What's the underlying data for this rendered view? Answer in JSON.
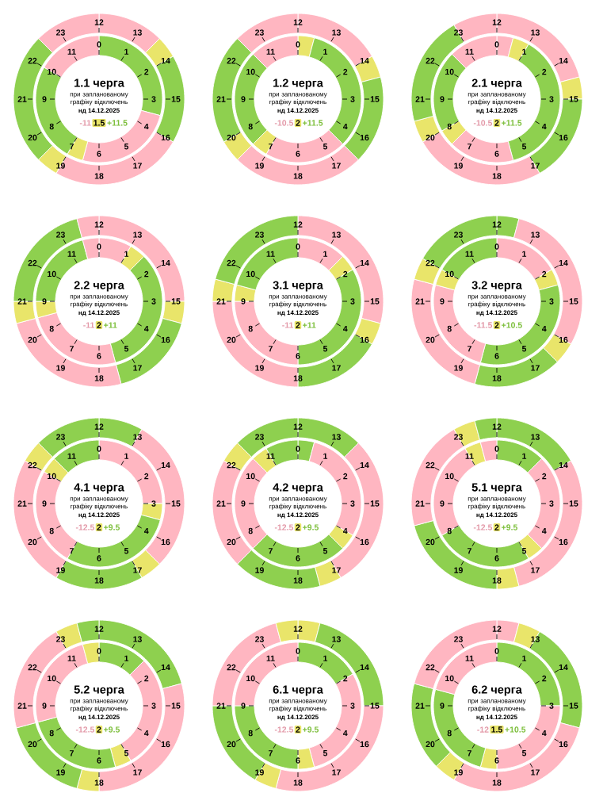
{
  "chart_data": [
    {
      "type": "donut",
      "title": "1.1 черга",
      "subtitle": "при запланованому графіку відключень",
      "annotations": [
        "нд 14.12.2025",
        "-11",
        "1.5",
        "+11.5",
        "0",
        "1",
        "2",
        "3",
        "4",
        "5",
        "6",
        "7",
        "8",
        "9",
        "10",
        "11",
        "12",
        "13",
        "14",
        "15",
        "16",
        "17",
        "18",
        "19",
        "20",
        "21",
        "22",
        "23"
      ],
      "series": [
        {
          "values": [
            29.17,
            25,
            4.17,
            25,
            16.67
          ],
          "colors": [
            "#8ed04f",
            "#ffb6c1",
            "#e9e56a",
            "#8ed04f",
            "#ffb6c1"
          ]
        },
        {
          "values": [
            12.5,
            4.17,
            16.67,
            25,
            4.17,
            25,
            12.5
          ],
          "colors": [
            "#ffb6c1",
            "#e9e56a",
            "#8ed04f",
            "#ffb6c1",
            "#e9e56a",
            "#8ed04f",
            "#ffb6c1"
          ]
        }
      ]
    },
    {
      "type": "donut",
      "title": "1.2 черга",
      "subtitle": "при запланованому графіку відключень",
      "annotations": [
        "нд 14.12.2025",
        "-10.5",
        "2",
        "+11.5",
        "0",
        "1",
        "2",
        "3",
        "4",
        "5",
        "6",
        "7",
        "8",
        "9",
        "10",
        "11",
        "12",
        "13",
        "14",
        "15",
        "16",
        "17",
        "18",
        "19",
        "20",
        "21",
        "22",
        "23"
      ],
      "series": [
        {
          "values": [
            4.17,
            33.33,
            20.83,
            4.17,
            25,
            12.5
          ],
          "colors": [
            "#e9e56a",
            "#8ed04f",
            "#ffb6c1",
            "#e9e56a",
            "#8ed04f",
            "#ffb6c1"
          ]
        },
        {
          "values": [
            16.67,
            4.17,
            16.67,
            25,
            4.17,
            20.83,
            12.5
          ],
          "colors": [
            "#ffb6c1",
            "#e9e56a",
            "#8ed04f",
            "#ffb6c1",
            "#e9e56a",
            "#8ed04f",
            "#ffb6c1"
          ]
        }
      ]
    },
    {
      "type": "donut",
      "title": "2.1 черга",
      "subtitle": "при запланованому графіку відключень",
      "annotations": [
        "нд 14.12.2025",
        "-10.5",
        "2",
        "+11.5",
        "0",
        "1",
        "2",
        "3",
        "4",
        "5",
        "6",
        "7",
        "8",
        "9",
        "10",
        "11",
        "12",
        "13",
        "14",
        "15",
        "16",
        "17",
        "18",
        "19",
        "20",
        "21",
        "22",
        "23"
      ],
      "series": [
        {
          "values": [
            4.17,
            4.17,
            37.5,
            16.67,
            4.17,
            20.83,
            12.5
          ],
          "colors": [
            "#ffb6c1",
            "#e9e56a",
            "#8ed04f",
            "#ffb6c1",
            "#e9e56a",
            "#8ed04f",
            "#ffb6c1"
          ]
        },
        {
          "values": [
            20.83,
            4.17,
            16.67,
            25,
            4.17,
            20.83,
            8.33
          ],
          "colors": [
            "#ffb6c1",
            "#e9e56a",
            "#8ed04f",
            "#ffb6c1",
            "#e9e56a",
            "#8ed04f",
            "#ffb6c1"
          ]
        }
      ]
    },
    {
      "type": "donut",
      "title": "2.2 черга",
      "subtitle": "при запланованому графіку відключень",
      "annotations": [
        "нд 14.12.2025",
        "-11",
        "2",
        "+11",
        "0",
        "1",
        "2",
        "3",
        "4",
        "5",
        "6",
        "7",
        "8",
        "9",
        "10",
        "11",
        "12",
        "13",
        "14",
        "15",
        "16",
        "17",
        "18",
        "19",
        "20",
        "21",
        "22",
        "23"
      ],
      "series": [
        {
          "values": [
            8.33,
            4.17,
            33.33,
            25,
            4.17,
            20.83,
            4.17
          ],
          "colors": [
            "#ffb6c1",
            "#e9e56a",
            "#8ed04f",
            "#ffb6c1",
            "#e9e56a",
            "#8ed04f",
            "#ffb6c1"
          ]
        },
        {
          "values": [
            25,
            4.17,
            16.67,
            25,
            4.17,
            20.83,
            4.17
          ],
          "colors": [
            "#ffb6c1",
            "#e9e56a",
            "#8ed04f",
            "#ffb6c1",
            "#e9e56a",
            "#8ed04f",
            "#ffb6c1"
          ]
        }
      ]
    },
    {
      "type": "donut",
      "title": "3.1 черга",
      "subtitle": "при запланованому графіку відключень",
      "annotations": [
        "нд 14.12.2025",
        "-11",
        "2",
        "+11",
        "0",
        "1",
        "2",
        "3",
        "4",
        "5",
        "6",
        "7",
        "8",
        "9",
        "10",
        "11",
        "12",
        "13",
        "14",
        "15",
        "16",
        "17",
        "18",
        "19",
        "20",
        "21",
        "22",
        "23"
      ],
      "series": [
        {
          "values": [
            12.5,
            4.17,
            33.33,
            25,
            4.17,
            20.83
          ],
          "colors": [
            "#ffb6c1",
            "#e9e56a",
            "#8ed04f",
            "#ffb6c1",
            "#e9e56a",
            "#8ed04f"
          ]
        },
        {
          "values": [
            29.17,
            4.17,
            16.67,
            25,
            4.17,
            20.83
          ],
          "colors": [
            "#ffb6c1",
            "#e9e56a",
            "#8ed04f",
            "#ffb6c1",
            "#e9e56a",
            "#8ed04f"
          ]
        }
      ]
    },
    {
      "type": "donut",
      "title": "3.2 черга",
      "subtitle": "при запланованому графіку відключень",
      "annotations": [
        "нд 14.12.2025",
        "-11.5",
        "2",
        "+10.5",
        "0",
        "1",
        "2",
        "3",
        "4",
        "5",
        "6",
        "7",
        "8",
        "9",
        "10",
        "11",
        "12",
        "13",
        "14",
        "15",
        "16",
        "17",
        "18",
        "19",
        "20",
        "21",
        "22",
        "23"
      ],
      "series": [
        {
          "values": [
            16.67,
            4.17,
            33.33,
            25,
            4.17,
            16.67
          ],
          "colors": [
            "#ffb6c1",
            "#e9e56a",
            "#8ed04f",
            "#ffb6c1",
            "#e9e56a",
            "#8ed04f"
          ]
        },
        {
          "values": [
            4.17,
            29.17,
            4.17,
            16.67,
            25,
            4.17,
            16.67
          ],
          "colors": [
            "#8ed04f",
            "#ffb6c1",
            "#e9e56a",
            "#8ed04f",
            "#ffb6c1",
            "#e9e56a",
            "#8ed04f"
          ]
        }
      ]
    },
    {
      "type": "donut",
      "title": "4.1 черга",
      "subtitle": "при запланованому графіку відключень",
      "annotations": [
        "нд 14.12.2025",
        "-12.5",
        "2",
        "+9.5",
        "0",
        "1",
        "2",
        "3",
        "4",
        "5",
        "6",
        "7",
        "8",
        "9",
        "10",
        "11",
        "12",
        "13",
        "14",
        "15",
        "16",
        "17",
        "18",
        "19",
        "20",
        "21",
        "22",
        "23"
      ],
      "series": [
        {
          "values": [
            25,
            4.17,
            29.17,
            25,
            4.17,
            12.5
          ],
          "colors": [
            "#ffb6c1",
            "#e9e56a",
            "#8ed04f",
            "#ffb6c1",
            "#e9e56a",
            "#8ed04f"
          ]
        },
        {
          "values": [
            8.33,
            29.17,
            4.17,
            16.67,
            25,
            4.17,
            12.5
          ],
          "colors": [
            "#8ed04f",
            "#ffb6c1",
            "#e9e56a",
            "#8ed04f",
            "#ffb6c1",
            "#e9e56a",
            "#8ed04f"
          ]
        }
      ]
    },
    {
      "type": "donut",
      "title": "4.2 черга",
      "subtitle": "при запланованому графіку відключень",
      "annotations": [
        "нд 14.12.2025",
        "-12.5",
        "2",
        "+9.5",
        "0",
        "1",
        "2",
        "3",
        "4",
        "5",
        "6",
        "7",
        "8",
        "9",
        "10",
        "11",
        "12",
        "13",
        "14",
        "15",
        "16",
        "17",
        "18",
        "19",
        "20",
        "21",
        "22",
        "23"
      ],
      "series": [
        {
          "values": [
            4.17,
            29.17,
            4.17,
            25,
            25,
            4.17,
            8.33
          ],
          "colors": [
            "#8ed04f",
            "#ffb6c1",
            "#e9e56a",
            "#8ed04f",
            "#ffb6c1",
            "#e9e56a",
            "#8ed04f"
          ]
        },
        {
          "values": [
            12.5,
            29.17,
            4.17,
            16.67,
            20.83,
            4.17,
            12.5
          ],
          "colors": [
            "#8ed04f",
            "#ffb6c1",
            "#e9e56a",
            "#8ed04f",
            "#ffb6c1",
            "#e9e56a",
            "#8ed04f"
          ]
        }
      ]
    },
    {
      "type": "donut",
      "title": "5.1 черга",
      "subtitle": "при запланованому графіку відключень",
      "annotations": [
        "нд 14.12.2025",
        "-12.5",
        "2",
        "+9.5",
        "0",
        "1",
        "2",
        "3",
        "4",
        "5",
        "6",
        "7",
        "8",
        "9",
        "10",
        "11",
        "12",
        "13",
        "14",
        "15",
        "16",
        "17",
        "18",
        "19",
        "20",
        "21",
        "22",
        "23"
      ],
      "series": [
        {
          "values": [
            12.5,
            25,
            4.17,
            25,
            25,
            4.17,
            4.17
          ],
          "colors": [
            "#8ed04f",
            "#ffb6c1",
            "#e9e56a",
            "#8ed04f",
            "#ffb6c1",
            "#e9e56a",
            "#ffb6c1"
          ]
        },
        {
          "values": [
            16.67,
            29.17,
            4.17,
            20.83,
            20.83,
            4.17,
            4.17
          ],
          "colors": [
            "#8ed04f",
            "#ffb6c1",
            "#e9e56a",
            "#8ed04f",
            "#ffb6c1",
            "#e9e56a",
            "#8ed04f"
          ]
        }
      ]
    },
    {
      "type": "donut",
      "title": "5.2 черга",
      "subtitle": "при запланованому графіку відключень",
      "annotations": [
        "нд 14.12.2025",
        "-12.5",
        "2",
        "+9.5",
        "0",
        "1",
        "2",
        "3",
        "4",
        "5",
        "6",
        "7",
        "8",
        "9",
        "10",
        "11",
        "12",
        "13",
        "14",
        "15",
        "16",
        "17",
        "18",
        "19",
        "20",
        "21",
        "22",
        "23"
      ],
      "series": [
        {
          "values": [
            12.5,
            29.17,
            4.17,
            25,
            25,
            4.17
          ],
          "colors": [
            "#8ed04f",
            "#ffb6c1",
            "#e9e56a",
            "#8ed04f",
            "#ffb6c1",
            "#e9e56a"
          ]
        },
        {
          "values": [
            20.83,
            29.17,
            4.17,
            16.67,
            20.83,
            4.17,
            4.17
          ],
          "colors": [
            "#8ed04f",
            "#ffb6c1",
            "#e9e56a",
            "#8ed04f",
            "#ffb6c1",
            "#e9e56a",
            "#8ed04f"
          ]
        }
      ]
    },
    {
      "type": "donut",
      "title": "6.1 черга",
      "subtitle": "при запланованому графіку відключень",
      "annotations": [
        "нд 14.12.2025",
        "-12.5",
        "2",
        "+9.5",
        "0",
        "1",
        "2",
        "3",
        "4",
        "5",
        "6",
        "7",
        "8",
        "9",
        "10",
        "11",
        "12",
        "13",
        "14",
        "15",
        "16",
        "17",
        "18",
        "19",
        "20",
        "21",
        "22",
        "23"
      ],
      "series": [
        {
          "values": [
            16.67,
            29.17,
            4.17,
            25,
            25
          ],
          "colors": [
            "#8ed04f",
            "#ffb6c1",
            "#e9e56a",
            "#8ed04f",
            "#ffb6c1"
          ]
        },
        {
          "values": [
            4.17,
            20.83,
            29.17,
            4.17,
            16.67,
            20.83,
            4.17
          ],
          "colors": [
            "#e9e56a",
            "#8ed04f",
            "#ffb6c1",
            "#e9e56a",
            "#8ed04f",
            "#ffb6c1",
            "#e9e56a"
          ]
        }
      ]
    },
    {
      "type": "donut",
      "title": "6.2 черга",
      "subtitle": "при запланованому графіку відключень",
      "annotations": [
        "нд 14.12.2025",
        "-12",
        "1.5",
        "+10.5",
        "0",
        "1",
        "2",
        "3",
        "4",
        "5",
        "6",
        "7",
        "8",
        "9",
        "10",
        "11",
        "12",
        "13",
        "14",
        "15",
        "16",
        "17",
        "18",
        "19",
        "20",
        "21",
        "22",
        "23"
      ],
      "series": [
        {
          "values": [
            25,
            25,
            4.17,
            25,
            20.83
          ],
          "colors": [
            "#8ed04f",
            "#ffb6c1",
            "#e9e56a",
            "#8ed04f",
            "#ffb6c1"
          ]
        },
        {
          "values": [
            4.17,
            4.17,
            20.83,
            29.17,
            4.17,
            16.67,
            20.83
          ],
          "colors": [
            "#ffb6c1",
            "#e9e56a",
            "#8ed04f",
            "#ffb6c1",
            "#e9e56a",
            "#8ed04f",
            "#ffb6c1"
          ]
        }
      ]
    }
  ]
}
